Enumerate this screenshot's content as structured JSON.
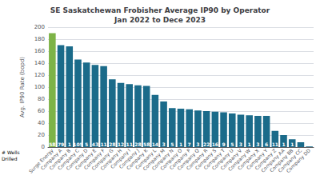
{
  "chart_data": {
    "type": "bar",
    "title": "SE Saskatchewan Frobisher Average IP90 by Operator\nJan 2022 to Dece 2023",
    "ylabel": "Avg. IP90 Rate (bopd)",
    "annotation": "# Wells\nDrilled",
    "categories": [
      "Surge Energy",
      "Company A",
      "Company B",
      "Company C",
      "Company D",
      "Company E",
      "Company F",
      "Company G",
      "Company H",
      "Company I",
      "Company J",
      "Company K",
      "Company L",
      "Company M",
      "Company N",
      "Company O",
      "Company P",
      "Company Q",
      "Company R",
      "Company S",
      "Company T",
      "Company U",
      "Company V",
      "Company W",
      "Company X",
      "Company Y",
      "Company Z",
      "Company AA",
      "Company BB",
      "Company CC",
      "Company DD"
    ],
    "values": [
      190,
      170,
      168,
      146,
      141,
      137,
      135,
      113,
      107,
      105,
      103,
      102,
      87,
      76,
      65,
      64,
      63,
      61,
      60,
      59,
      58,
      56,
      54,
      53,
      52,
      52,
      27,
      20,
      13,
      8,
      1
    ],
    "well_counts": [
      58,
      79,
      1,
      105,
      5,
      43,
      11,
      28,
      12,
      11,
      28,
      58,
      14,
      3,
      5,
      1,
      7,
      3,
      22,
      16,
      9,
      5,
      3,
      1,
      3,
      6,
      11,
      1,
      1,
      null,
      1
    ],
    "colors": [
      "#7db347",
      "#1b6b8a",
      "#1b6b8a",
      "#1b6b8a",
      "#1b6b8a",
      "#1b6b8a",
      "#1b6b8a",
      "#1b6b8a",
      "#1b6b8a",
      "#1b6b8a",
      "#1b6b8a",
      "#1b6b8a",
      "#1b6b8a",
      "#1b6b8a",
      "#1b6b8a",
      "#1b6b8a",
      "#1b6b8a",
      "#1b6b8a",
      "#1b6b8a",
      "#1b6b8a",
      "#1b6b8a",
      "#1b6b8a",
      "#1b6b8a",
      "#1b6b8a",
      "#1b6b8a",
      "#1b6b8a",
      "#1b6b8a",
      "#1b6b8a",
      "#1b6b8a",
      "#1b6b8a",
      "#1b6b8a"
    ],
    "ylim": [
      0,
      200
    ],
    "yticks": [
      0,
      20,
      40,
      60,
      80,
      100,
      120,
      140,
      160,
      180,
      200
    ],
    "grid": true
  }
}
